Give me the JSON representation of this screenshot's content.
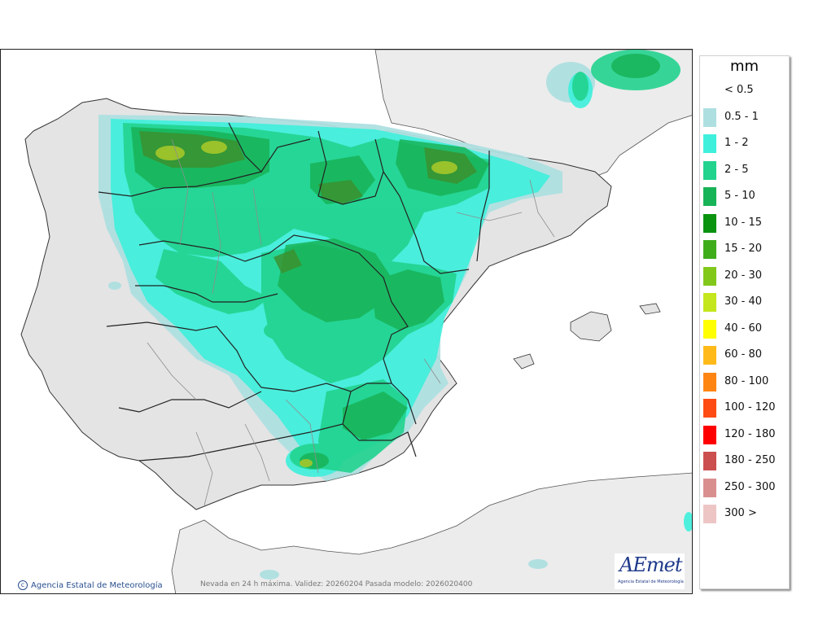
{
  "legend": {
    "unit": "mm",
    "items": [
      {
        "label": "< 0.5",
        "color": "none"
      },
      {
        "label": "0.5 - 1",
        "color": "#aedfe0"
      },
      {
        "label": "1 - 2",
        "color": "#3ef0dc"
      },
      {
        "label": "2 - 5",
        "color": "#22d38e"
      },
      {
        "label": "5 - 10",
        "color": "#17b357"
      },
      {
        "label": "10 - 15",
        "color": "#0a930f"
      },
      {
        "label": "15 - 20",
        "color": "#3fad1a"
      },
      {
        "label": "20 - 30",
        "color": "#82c81a"
      },
      {
        "label": "30 - 40",
        "color": "#c4e61c"
      },
      {
        "label": "40 - 60",
        "color": "#ffff00"
      },
      {
        "label": "60 - 80",
        "color": "#ffba1a"
      },
      {
        "label": "80 - 100",
        "color": "#ff8513"
      },
      {
        "label": "100 - 120",
        "color": "#ff4b14"
      },
      {
        "label": "120 - 180",
        "color": "#ff0000"
      },
      {
        "label": "180 - 250",
        "color": "#cc4f4f"
      },
      {
        "label": "250 - 300",
        "color": "#da8f8f"
      },
      {
        "label": "300 >",
        "color": "#eec5c5"
      }
    ]
  },
  "credit": "Agencia Estatal de Meteorología",
  "caption": "Nevada en 24 h máxima. Validez: 20260204 Pasada modelo: 2026020400",
  "logo": {
    "word": "AEmet",
    "subtitle": "Agencia Estatal de Meteorología"
  },
  "map": {
    "sea_color": "#ffffff",
    "land_color": "#ececec",
    "relief_color": "#cfcfcf"
  }
}
